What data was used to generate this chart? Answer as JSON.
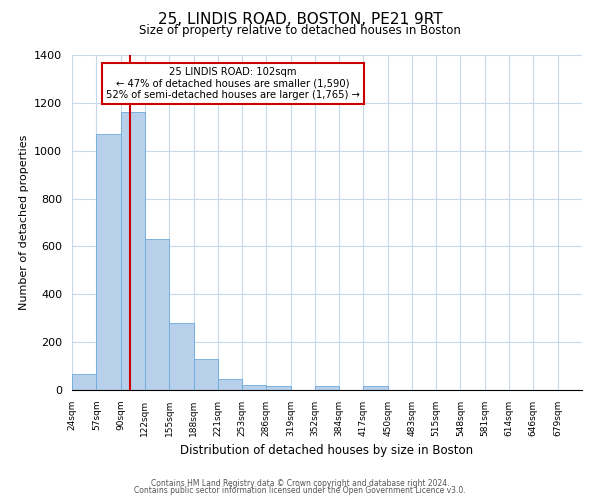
{
  "title": "25, LINDIS ROAD, BOSTON, PE21 9RT",
  "subtitle": "Size of property relative to detached houses in Boston",
  "xlabel": "Distribution of detached houses by size in Boston",
  "ylabel": "Number of detached properties",
  "bin_labels": [
    "24sqm",
    "57sqm",
    "90sqm",
    "122sqm",
    "155sqm",
    "188sqm",
    "221sqm",
    "253sqm",
    "286sqm",
    "319sqm",
    "352sqm",
    "384sqm",
    "417sqm",
    "450sqm",
    "483sqm",
    "515sqm",
    "548sqm",
    "581sqm",
    "614sqm",
    "646sqm",
    "679sqm"
  ],
  "bin_edges": [
    24,
    57,
    90,
    122,
    155,
    188,
    221,
    253,
    286,
    319,
    352,
    384,
    417,
    450,
    483,
    515,
    548,
    581,
    614,
    646,
    679,
    712
  ],
  "bar_heights": [
    65,
    1070,
    1160,
    630,
    280,
    130,
    48,
    20,
    15,
    0,
    18,
    0,
    18,
    0,
    0,
    0,
    0,
    0,
    0,
    0,
    0
  ],
  "bar_color": "#b8d0ea",
  "bar_edge_color": "#6aabdc",
  "vline_x": 102,
  "vline_color": "#cc0000",
  "annotation_title": "25 LINDIS ROAD: 102sqm",
  "annotation_line1": "← 47% of detached houses are smaller (1,590)",
  "annotation_line2": "52% of semi-detached houses are larger (1,765) →",
  "annotation_box_edge": "#cc0000",
  "ylim": [
    0,
    1400
  ],
  "yticks": [
    0,
    200,
    400,
    600,
    800,
    1000,
    1200,
    1400
  ],
  "footer1": "Contains HM Land Registry data © Crown copyright and database right 2024.",
  "footer2": "Contains public sector information licensed under the Open Government Licence v3.0.",
  "background_color": "#ffffff",
  "grid_color": "#c8d8e8"
}
